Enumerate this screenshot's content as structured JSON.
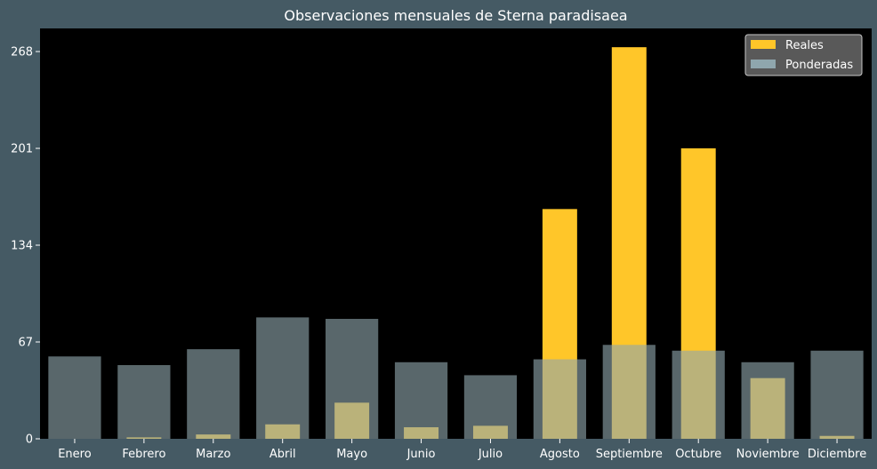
{
  "chart_data": {
    "type": "bar",
    "title": "Observaciones mensuales de Sterna paradisaea",
    "xlabel": "",
    "ylabel": "",
    "categories": [
      "Enero",
      "Febrero",
      "Marzo",
      "Abril",
      "Mayo",
      "Junio",
      "Julio",
      "Agosto",
      "Septiembre",
      "Octubre",
      "Noviembre",
      "Diciembre"
    ],
    "series": [
      {
        "name": "Reales",
        "color": "#ffc629",
        "values": [
          0,
          1,
          3,
          10,
          25,
          8,
          9,
          159,
          271,
          201,
          42,
          2
        ]
      },
      {
        "name": "Ponderadas",
        "color": "#8fa6ad",
        "values": [
          57,
          51,
          62,
          84,
          83,
          53,
          44,
          55,
          65,
          61,
          53,
          61
        ]
      }
    ],
    "yticks": [
      0,
      67,
      134,
      201,
      268
    ],
    "ylim": [
      0,
      284
    ],
    "grid": false,
    "legend": "top-right",
    "background": "#000000",
    "figure_background": "#455a64"
  }
}
